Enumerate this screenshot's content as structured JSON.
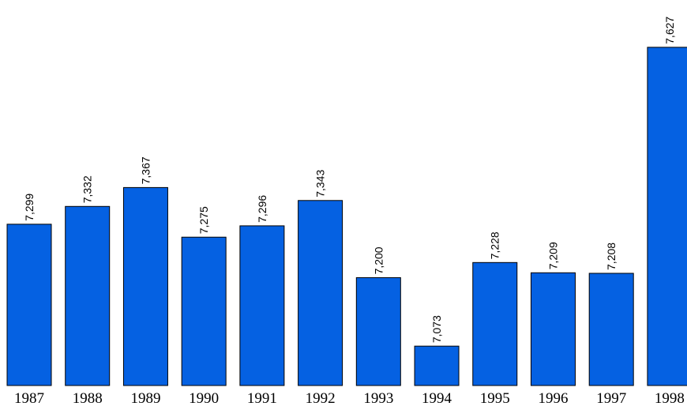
{
  "chart_data": {
    "type": "bar",
    "categories": [
      "1987",
      "1988",
      "1989",
      "1990",
      "1991",
      "1992",
      "1993",
      "1994",
      "1995",
      "1996",
      "1997",
      "1998"
    ],
    "values": [
      7299,
      7332,
      7367,
      7275,
      7296,
      7343,
      7200,
      7073,
      7228,
      7209,
      7208,
      7627
    ],
    "value_labels": [
      "7,299",
      "7,332",
      "7,367",
      "7,275",
      "7,296",
      "7,343",
      "7,200",
      "7,073",
      "7,228",
      "7,209",
      "7,208",
      "7,627"
    ],
    "color": "#0561e2",
    "ylim": [
      7000,
      7700
    ]
  }
}
